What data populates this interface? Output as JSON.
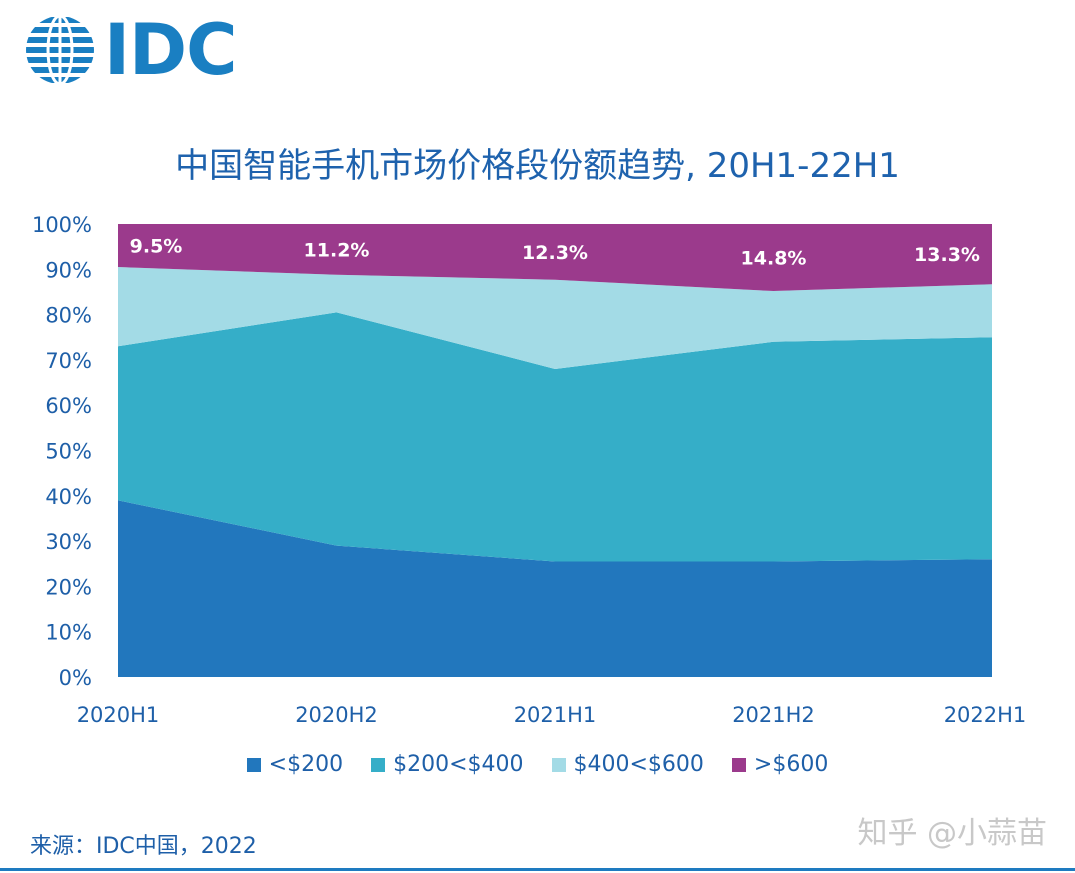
{
  "logo": {
    "text": "IDC"
  },
  "chart_data": {
    "type": "area",
    "stacked": true,
    "title": "中国智能手机市场价格段份额趋势, 20H1-22H1",
    "categories": [
      "2020H1",
      "2020H2",
      "2021H1",
      "2021H2",
      "2022H1"
    ],
    "y_ticks": [
      "0%",
      "10%",
      "20%",
      "30%",
      "40%",
      "50%",
      "60%",
      "70%",
      "80%",
      "90%",
      "100%"
    ],
    "ylim": [
      0,
      100
    ],
    "series": [
      {
        "name": "<$200",
        "color": "#2277bd",
        "values": [
          39.0,
          29.0,
          25.5,
          25.5,
          26.0
        ]
      },
      {
        "name": "$200<$400",
        "color": "#35aec8",
        "values": [
          34.0,
          51.5,
          42.5,
          48.5,
          49.0
        ]
      },
      {
        "name": "$400<$600",
        "color": "#a3dbe6",
        "values": [
          17.5,
          8.3,
          19.7,
          11.2,
          11.7
        ]
      },
      {
        "name": ">$600",
        "color": "#9b3a8c",
        "values": [
          9.5,
          11.2,
          12.3,
          14.8,
          13.3
        ]
      }
    ],
    "data_labels": [
      "9.5%",
      "11.2%",
      "12.3%",
      "14.8%",
      "13.3%"
    ],
    "legend_position": "bottom",
    "grid": false
  },
  "legend": {
    "items": [
      {
        "label": "<$200",
        "color": "#2277bd"
      },
      {
        "label": "$200<$400",
        "color": "#35aec8"
      },
      {
        "label": "$400<$600",
        "color": "#a3dbe6"
      },
      {
        "label": ">$600",
        "color": "#9b3a8c"
      }
    ]
  },
  "source": "来源：IDC中国，2022",
  "watermark": "知乎 @小蒜苗"
}
